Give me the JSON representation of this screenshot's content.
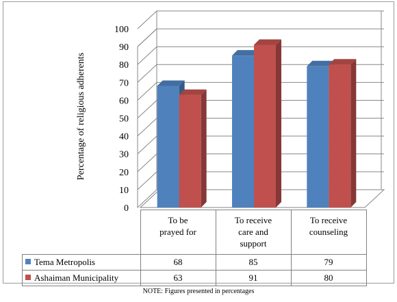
{
  "chart_data": {
    "type": "bar",
    "categories": [
      "To be prayed for",
      "To receive care and support",
      "To receive counseling"
    ],
    "category_lines": [
      [
        "To be",
        "prayed for"
      ],
      [
        "To receive",
        "care and",
        "support"
      ],
      [
        "To receive",
        "counseling"
      ]
    ],
    "series": [
      {
        "name": "Tema Metropolis",
        "values": [
          68,
          85,
          79
        ],
        "color": "#4f81bd"
      },
      {
        "name": "Ashaiman Municipality",
        "values": [
          63,
          91,
          80
        ],
        "color": "#c0504d"
      }
    ],
    "ylabel": "Percentage of religious adherents",
    "xlabel": "",
    "ylim": [
      0,
      100
    ],
    "yticks": [
      0,
      10,
      20,
      30,
      40,
      50,
      60,
      70,
      80,
      90,
      100
    ],
    "grid": true,
    "legend": "data-table",
    "three_d": true
  },
  "note": "NOTE: Figures presented in percentages"
}
